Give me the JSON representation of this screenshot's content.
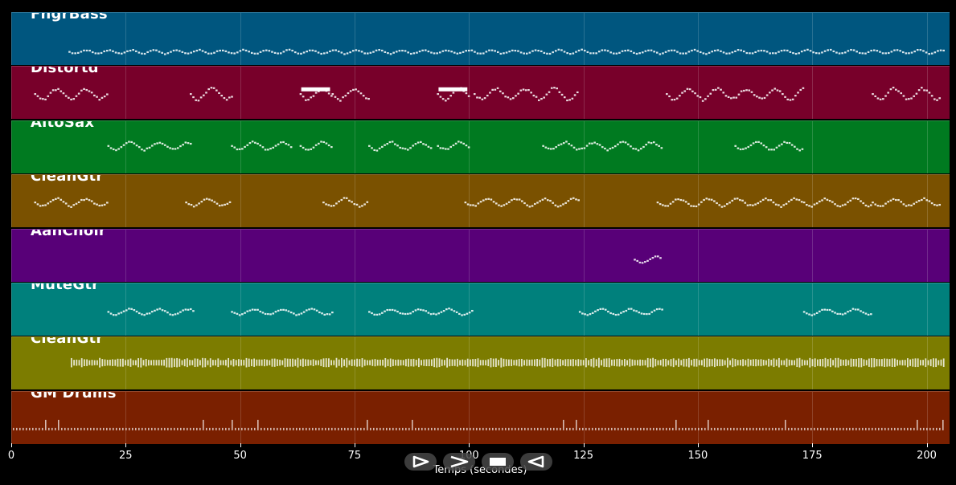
{
  "tracks": [
    {
      "name": "FngrBass",
      "color": "#00567f",
      "style": "dense",
      "segments": [
        [
          12.5,
          204
        ]
      ],
      "level": 0.72,
      "amp": 0.04
    },
    {
      "name": "Distortd",
      "color": "#78002a",
      "style": "wavy",
      "segments": [
        [
          5,
          21
        ],
        [
          39,
          48
        ],
        [
          63,
          70
        ],
        [
          70,
          78
        ],
        [
          93,
          100
        ],
        [
          101,
          124
        ],
        [
          143,
          173
        ],
        [
          188,
          203
        ]
      ],
      "level": 0.5,
      "amp": 0.12,
      "bars": [
        [
          63,
          70
        ],
        [
          93,
          100
        ]
      ]
    },
    {
      "name": "AltoSax",
      "color": "#007a20",
      "style": "wavy",
      "segments": [
        [
          21,
          39
        ],
        [
          48,
          61
        ],
        [
          63,
          70
        ],
        [
          78,
          92
        ],
        [
          93,
          100
        ],
        [
          116,
          142
        ],
        [
          158,
          173
        ]
      ],
      "level": 0.45,
      "amp": 0.08
    },
    {
      "name": "CleanGtr",
      "color": "#7a5100",
      "style": "wavy",
      "segments": [
        [
          5,
          21
        ],
        [
          38,
          48
        ],
        [
          68,
          78
        ],
        [
          99,
          124
        ],
        [
          141,
          173
        ],
        [
          173,
          188
        ],
        [
          188,
          203
        ]
      ],
      "level": 0.5,
      "amp": 0.08
    },
    {
      "name": "AahChoir",
      "color": "#580078",
      "style": "wavy",
      "segments": [
        [
          136,
          142
        ]
      ],
      "level": 0.55,
      "amp": 0.06
    },
    {
      "name": "MuteGtr",
      "color": "#00807c",
      "style": "wavy",
      "segments": [
        [
          21,
          40
        ],
        [
          48,
          70
        ],
        [
          78,
          101
        ],
        [
          124,
          142
        ],
        [
          173,
          188
        ]
      ],
      "level": 0.52,
      "amp": 0.06
    },
    {
      "name": "CleanGtr",
      "color": "#7c7c00",
      "style": "bars",
      "segments": [
        [
          13,
          204
        ]
      ],
      "level": 0.45,
      "amp": 0.1
    },
    {
      "name": "GM Drums",
      "color": "#7a2000",
      "style": "drums",
      "segments": [
        [
          0,
          204
        ]
      ],
      "level": 0.68,
      "amp": 0.06
    }
  ],
  "axis": {
    "xmin": 0,
    "xmax": 205,
    "ticks": [
      0,
      25,
      50,
      75,
      100,
      125,
      150,
      175,
      200
    ],
    "tick_labels": [
      "0",
      "25",
      "50",
      "75",
      "100",
      "125",
      "150",
      "175",
      "200"
    ],
    "xlabel": "Temps (secondes)"
  },
  "controls": [
    {
      "name": "play-button",
      "icon": "play-icon"
    },
    {
      "name": "forward-button",
      "icon": "fast-forward-icon"
    },
    {
      "name": "stop-button",
      "icon": "stop-icon"
    },
    {
      "name": "rewind-button",
      "icon": "rewind-icon"
    }
  ]
}
